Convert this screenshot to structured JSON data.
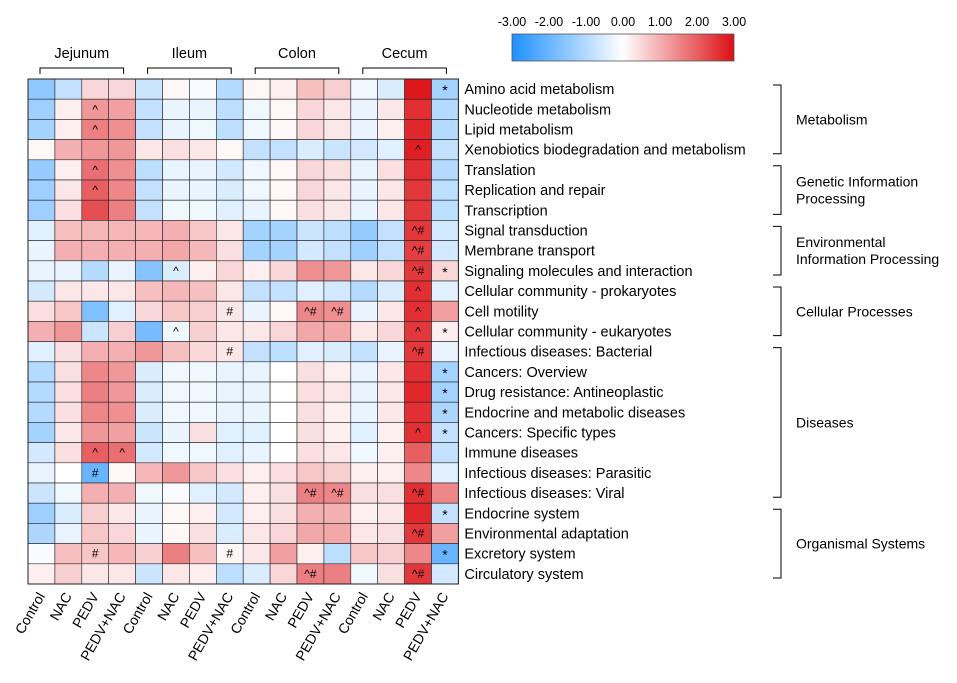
{
  "chart_data": {
    "type": "heatmap",
    "title": "",
    "colorbar": {
      "ticks": [
        "-3.00",
        "-2.00",
        "-1.00",
        "0.00",
        "1.00",
        "2.00",
        "3.00"
      ],
      "range": [
        -3,
        3
      ],
      "colors": {
        "low": "#1e90ff",
        "mid": "#ffffff",
        "high": "#dc0f14"
      }
    },
    "tissues": [
      "Jejunum",
      "Ileum",
      "Colon",
      "Cecum"
    ],
    "columns": [
      "Control",
      "NAC",
      "PEDV",
      "PEDV+NAC",
      "Control",
      "NAC",
      "PEDV",
      "PEDV+NAC",
      "Control",
      "NAC",
      "PEDV",
      "PEDV+NAC",
      "Control",
      "NAC",
      "PEDV",
      "PEDV+NAC"
    ],
    "rows": [
      "Amino acid metabolism",
      "Nucleotide metabolism",
      "Lipid metabolism",
      "Xenobiotics biodegradation and metabolism",
      "Translation",
      "Replication and repair",
      "Transcription",
      "Signal transduction",
      "Membrane transport",
      "Signaling molecules and interaction",
      "Cellular community - prokaryotes",
      "Cell motility",
      "Cellular community - eukaryotes",
      "Infectious diseases: Bacterial",
      "Cancers: Overview",
      "Drug resistance: Antineoplastic",
      "Endocrine and metabolic diseases",
      "Cancers: Specific types",
      "Immune diseases",
      "Infectious diseases: Parasitic",
      "Infectious diseases: Viral",
      "Endocrine system",
      "Environmental adaptation",
      "Excretory system",
      "Circulatory system"
    ],
    "values": [
      [
        -1.5,
        -0.8,
        0.5,
        0.5,
        -0.7,
        0.1,
        -0.1,
        -1.0,
        0.1,
        0.2,
        0.8,
        0.6,
        -0.2,
        -0.5,
        2.9,
        -1.2
      ],
      [
        -1.3,
        0.2,
        1.3,
        1.2,
        -0.8,
        -0.3,
        -0.3,
        -0.9,
        -0.2,
        0.1,
        0.5,
        0.3,
        -0.3,
        0.3,
        2.6,
        -1.0
      ],
      [
        -1.2,
        0.2,
        1.6,
        1.4,
        -0.8,
        -0.3,
        -0.2,
        -0.9,
        -0.2,
        0.1,
        0.5,
        0.3,
        -0.3,
        0.2,
        2.7,
        -1.0
      ],
      [
        0.1,
        1.0,
        1.3,
        1.3,
        0.3,
        0.4,
        0.3,
        0.1,
        -0.8,
        -0.8,
        -0.5,
        -0.7,
        -0.6,
        -0.4,
        2.8,
        -0.8
      ],
      [
        -1.4,
        0.2,
        1.8,
        1.4,
        -0.9,
        -0.3,
        -0.3,
        -0.6,
        -0.2,
        0.1,
        0.5,
        0.4,
        -0.3,
        0.4,
        2.6,
        -1.0
      ],
      [
        -1.3,
        0.3,
        2.0,
        1.5,
        -0.8,
        -0.3,
        -0.3,
        -0.5,
        -0.2,
        0.1,
        0.5,
        0.3,
        -0.3,
        0.3,
        2.5,
        -0.9
      ],
      [
        -1.3,
        0.4,
        2.2,
        1.6,
        -0.8,
        -0.2,
        -0.2,
        -0.4,
        -0.3,
        0.1,
        0.4,
        0.3,
        -0.3,
        0.3,
        2.5,
        -0.9
      ],
      [
        -0.4,
        0.8,
        0.9,
        0.9,
        0.9,
        1.0,
        0.7,
        0.3,
        -1.2,
        -1.2,
        -0.7,
        -0.9,
        -1.4,
        -0.8,
        2.5,
        -0.6
      ],
      [
        -0.3,
        1.0,
        1.0,
        1.0,
        1.0,
        1.1,
        0.9,
        0.4,
        -1.2,
        -1.2,
        -0.6,
        -0.8,
        -1.3,
        -0.8,
        2.4,
        -0.6
      ],
      [
        -0.3,
        -0.3,
        -1.0,
        -0.3,
        -1.6,
        -0.5,
        0.2,
        0.5,
        0.2,
        0.5,
        1.4,
        1.3,
        0.3,
        0.5,
        2.5,
        0.5
      ],
      [
        -0.6,
        0.3,
        0.3,
        0.3,
        0.8,
        0.9,
        0.8,
        0.3,
        -0.8,
        -0.8,
        -0.4,
        -0.6,
        -1.0,
        -0.5,
        2.6,
        -0.4
      ],
      [
        0.4,
        0.7,
        -1.7,
        -0.4,
        0.5,
        0.7,
        0.6,
        0.3,
        -0.3,
        0.1,
        1.5,
        1.4,
        -0.3,
        0.3,
        2.6,
        1.2
      ],
      [
        1.0,
        1.3,
        -0.7,
        0.6,
        -1.8,
        -0.2,
        0.6,
        0.3,
        0.3,
        0.5,
        1.1,
        1.1,
        0.3,
        0.5,
        2.5,
        0.2
      ],
      [
        -0.4,
        0.4,
        1.0,
        1.0,
        1.3,
        0.8,
        0.5,
        0.3,
        -0.8,
        -0.9,
        -0.4,
        -0.5,
        -0.8,
        -0.3,
        2.5,
        -0.3
      ],
      [
        -1.0,
        0.4,
        1.5,
        1.3,
        -0.5,
        -0.2,
        -0.2,
        -0.3,
        -0.3,
        0.0,
        0.4,
        0.2,
        -0.3,
        0.3,
        2.6,
        -1.2
      ],
      [
        -1.0,
        0.4,
        1.6,
        1.3,
        -0.5,
        -0.2,
        -0.2,
        -0.3,
        -0.3,
        0.0,
        0.4,
        0.3,
        -0.3,
        0.3,
        2.7,
        -1.2
      ],
      [
        -1.0,
        0.4,
        1.5,
        1.4,
        -0.5,
        -0.2,
        -0.2,
        -0.3,
        -0.3,
        0.0,
        0.4,
        0.2,
        -0.3,
        0.3,
        2.6,
        -1.1
      ],
      [
        -1.2,
        0.3,
        1.3,
        1.2,
        -0.7,
        -0.3,
        0.4,
        -0.4,
        -0.4,
        0.0,
        0.4,
        0.2,
        -0.4,
        0.2,
        2.6,
        -0.8
      ],
      [
        -0.6,
        0.4,
        2.0,
        1.8,
        -0.6,
        -0.2,
        -0.2,
        -0.4,
        -0.3,
        0.0,
        0.4,
        0.3,
        -0.2,
        0.2,
        2.0,
        -0.8
      ],
      [
        -0.3,
        0.0,
        -2.0,
        0.1,
        0.9,
        1.3,
        0.7,
        0.4,
        0.2,
        0.4,
        0.7,
        0.6,
        0.2,
        0.2,
        1.5,
        -0.4
      ],
      [
        -0.7,
        -0.2,
        1.0,
        1.0,
        -0.2,
        -0.1,
        -0.4,
        -0.6,
        0.2,
        0.4,
        1.6,
        1.5,
        0.4,
        0.4,
        2.6,
        1.5
      ],
      [
        -1.3,
        -0.5,
        0.6,
        0.3,
        -0.3,
        0.1,
        0.2,
        -0.6,
        0.2,
        0.4,
        1.0,
        1.0,
        0.2,
        0.3,
        2.7,
        -0.8
      ],
      [
        -1.1,
        -0.3,
        0.7,
        0.5,
        -0.3,
        0.1,
        0.4,
        -0.5,
        0.3,
        0.5,
        1.1,
        1.1,
        0.3,
        0.4,
        2.5,
        1.2
      ],
      [
        -0.1,
        0.8,
        0.7,
        0.9,
        0.6,
        1.6,
        0.8,
        0.1,
        0.3,
        1.2,
        0.2,
        -0.9,
        0.7,
        0.6,
        1.5,
        -2.0
      ],
      [
        0.2,
        0.6,
        0.3,
        0.3,
        -0.7,
        0.3,
        0.2,
        -0.9,
        -0.5,
        0.5,
        1.6,
        1.6,
        -0.2,
        0.4,
        2.5,
        -0.6
      ]
    ],
    "annotations": [
      {
        "row": 0,
        "col": 15,
        "text": "*"
      },
      {
        "row": 1,
        "col": 2,
        "text": "^"
      },
      {
        "row": 2,
        "col": 2,
        "text": "^"
      },
      {
        "row": 3,
        "col": 14,
        "text": "^"
      },
      {
        "row": 4,
        "col": 2,
        "text": "^"
      },
      {
        "row": 5,
        "col": 2,
        "text": "^"
      },
      {
        "row": 7,
        "col": 14,
        "text": "^#"
      },
      {
        "row": 8,
        "col": 14,
        "text": "^#"
      },
      {
        "row": 9,
        "col": 5,
        "text": "^"
      },
      {
        "row": 9,
        "col": 14,
        "text": "^#"
      },
      {
        "row": 9,
        "col": 15,
        "text": "*"
      },
      {
        "row": 10,
        "col": 14,
        "text": "^"
      },
      {
        "row": 11,
        "col": 7,
        "text": "#"
      },
      {
        "row": 11,
        "col": 10,
        "text": "^#"
      },
      {
        "row": 11,
        "col": 11,
        "text": "^#"
      },
      {
        "row": 11,
        "col": 14,
        "text": "^"
      },
      {
        "row": 12,
        "col": 5,
        "text": "^"
      },
      {
        "row": 12,
        "col": 14,
        "text": "^"
      },
      {
        "row": 12,
        "col": 15,
        "text": "*"
      },
      {
        "row": 13,
        "col": 7,
        "text": "#"
      },
      {
        "row": 13,
        "col": 14,
        "text": "^#"
      },
      {
        "row": 14,
        "col": 15,
        "text": "*"
      },
      {
        "row": 15,
        "col": 15,
        "text": "*"
      },
      {
        "row": 16,
        "col": 15,
        "text": "*"
      },
      {
        "row": 17,
        "col": 14,
        "text": "^"
      },
      {
        "row": 17,
        "col": 15,
        "text": "*"
      },
      {
        "row": 18,
        "col": 2,
        "text": "^"
      },
      {
        "row": 18,
        "col": 3,
        "text": "^"
      },
      {
        "row": 19,
        "col": 2,
        "text": "#"
      },
      {
        "row": 20,
        "col": 10,
        "text": "^#"
      },
      {
        "row": 20,
        "col": 11,
        "text": "^#"
      },
      {
        "row": 20,
        "col": 14,
        "text": "^#"
      },
      {
        "row": 21,
        "col": 15,
        "text": "*"
      },
      {
        "row": 22,
        "col": 14,
        "text": "^#"
      },
      {
        "row": 23,
        "col": 2,
        "text": "#"
      },
      {
        "row": 23,
        "col": 7,
        "text": "#"
      },
      {
        "row": 23,
        "col": 15,
        "text": "*"
      },
      {
        "row": 24,
        "col": 10,
        "text": "^#"
      },
      {
        "row": 24,
        "col": 14,
        "text": "^#"
      }
    ],
    "categories": [
      {
        "name": "Metabolism",
        "lines": [
          "Metabolism"
        ],
        "rows": [
          0,
          3
        ]
      },
      {
        "name": "Genetic Information Processing",
        "lines": [
          "Genetic Information",
          "Processing"
        ],
        "rows": [
          4,
          6
        ]
      },
      {
        "name": "Environmental Information Processing",
        "lines": [
          "Environmental",
          "Information Processing"
        ],
        "rows": [
          7,
          9
        ]
      },
      {
        "name": "Cellular Processes",
        "lines": [
          "Cellular Processes"
        ],
        "rows": [
          10,
          12
        ]
      },
      {
        "name": "Diseases",
        "lines": [
          "Diseases"
        ],
        "rows": [
          13,
          20
        ]
      },
      {
        "name": "Organismal Systems",
        "lines": [
          "Organismal Systems"
        ],
        "rows": [
          21,
          24
        ]
      }
    ]
  }
}
